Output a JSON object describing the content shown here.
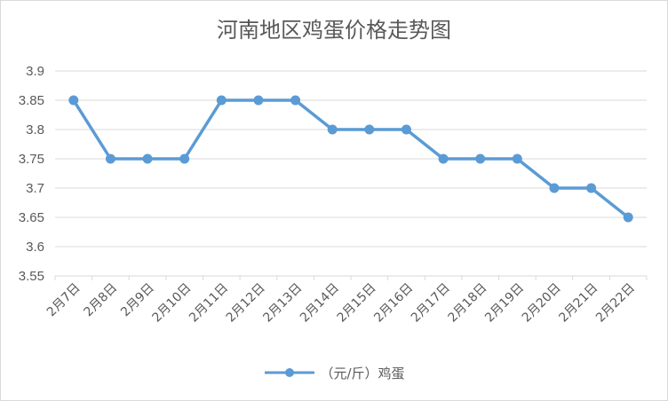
{
  "chart_data": {
    "type": "line",
    "title": "河南地区鸡蛋价格走势图",
    "xlabel": "",
    "ylabel": "",
    "categories": [
      "2月7日",
      "2月8日",
      "2月9日",
      "2月10日",
      "2月11日",
      "2月12日",
      "2月13日",
      "2月14日",
      "2月15日",
      "2月16日",
      "2月17日",
      "2月18日",
      "2月19日",
      "2月20日",
      "2月21日",
      "2月22日"
    ],
    "series": [
      {
        "name": "（元/斤）鸡蛋",
        "values": [
          3.85,
          3.75,
          3.75,
          3.75,
          3.85,
          3.85,
          3.85,
          3.8,
          3.8,
          3.8,
          3.75,
          3.75,
          3.75,
          3.7,
          3.7,
          3.65
        ]
      }
    ],
    "ylim": [
      3.55,
      3.9
    ],
    "yticks": [
      "3.55",
      "3.6",
      "3.65",
      "3.7",
      "3.75",
      "3.8",
      "3.85",
      "3.9"
    ],
    "grid": true,
    "legend_position": "bottom",
    "colors": {
      "series": "#5b9bd5",
      "grid": "#d9d9d9",
      "text": "#595959"
    }
  }
}
